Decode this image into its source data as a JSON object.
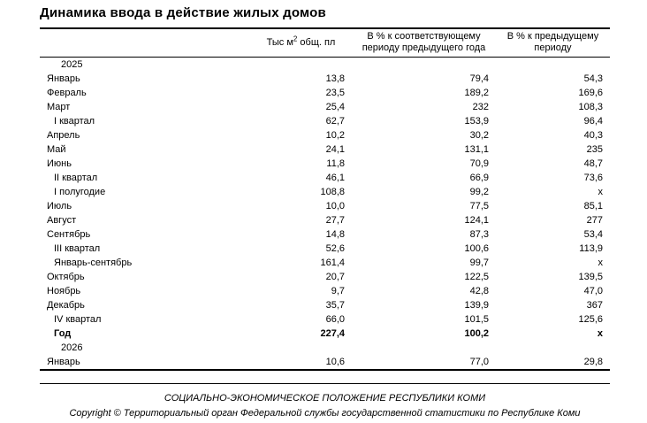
{
  "page": {
    "title": "Динамика ввода в действие жилых домов"
  },
  "table": {
    "headers": {
      "col1": {
        "prefix": "Тыс м",
        "sup": "2",
        "suffix": " общ. пл"
      },
      "col2": {
        "line1": "В % к соответствующему",
        "line2": "периоду предыдущего года"
      },
      "col3": {
        "line1": "В % к предыдущему",
        "line2": "периоду"
      }
    },
    "rows": [
      {
        "label": "2025",
        "type": "year",
        "v1": "",
        "v2": "",
        "v3": ""
      },
      {
        "label": "Январь",
        "type": "month",
        "v1": "13,8",
        "v2": "79,4",
        "v3": "54,3"
      },
      {
        "label": "Февраль",
        "type": "month",
        "v1": "23,5",
        "v2": "189,2",
        "v3": "169,6"
      },
      {
        "label": "Март",
        "type": "month",
        "v1": "25,4",
        "v2": "232",
        "v3": "108,3"
      },
      {
        "label": "I квартал",
        "type": "period",
        "v1": "62,7",
        "v2": "153,9",
        "v3": "96,4"
      },
      {
        "label": "Апрель",
        "type": "month",
        "v1": "10,2",
        "v2": "30,2",
        "v3": "40,3"
      },
      {
        "label": "Май",
        "type": "month",
        "v1": "24,1",
        "v2": "131,1",
        "v3": "235"
      },
      {
        "label": "Июнь",
        "type": "month",
        "v1": "11,8",
        "v2": "70,9",
        "v3": "48,7"
      },
      {
        "label": "II квартал",
        "type": "period",
        "v1": "46,1",
        "v2": "66,9",
        "v3": "73,6"
      },
      {
        "label": "I полугодие",
        "type": "period",
        "v1": "108,8",
        "v2": "99,2",
        "v3": "x"
      },
      {
        "label": "Июль",
        "type": "month",
        "v1": "10,0",
        "v2": "77,5",
        "v3": "85,1"
      },
      {
        "label": "Август",
        "type": "month",
        "v1": "27,7",
        "v2": "124,1",
        "v3": "277"
      },
      {
        "label": "Сентябрь",
        "type": "month",
        "v1": "14,8",
        "v2": "87,3",
        "v3": "53,4"
      },
      {
        "label": "III квартал",
        "type": "period",
        "v1": "52,6",
        "v2": "100,6",
        "v3": "113,9"
      },
      {
        "label": "Январь-сентябрь",
        "type": "period",
        "v1": "161,4",
        "v2": "99,7",
        "v3": "x"
      },
      {
        "label": "Октябрь",
        "type": "month",
        "v1": "20,7",
        "v2": "122,5",
        "v3": "139,5"
      },
      {
        "label": "Ноябрь",
        "type": "month",
        "v1": "9,7",
        "v2": "42,8",
        "v3": "47,0"
      },
      {
        "label": "Декабрь",
        "type": "month",
        "v1": "35,7",
        "v2": "139,9",
        "v3": "367"
      },
      {
        "label": "IV квартал",
        "type": "period",
        "v1": "66,0",
        "v2": "101,5",
        "v3": "125,6"
      },
      {
        "label": "Год",
        "type": "total",
        "v1": "227,4",
        "v2": "100,2",
        "v3": "x"
      },
      {
        "label": "2026",
        "type": "year",
        "v1": "",
        "v2": "",
        "v3": ""
      },
      {
        "label": "Январь",
        "type": "month",
        "v1": "10,6",
        "v2": "77,0",
        "v3": "29,8"
      }
    ]
  },
  "footer": {
    "publication": "СОЦИАЛЬНО-ЭКОНОМИЧЕСКОЕ ПОЛОЖЕНИЕ РЕСПУБЛИКИ КОМИ",
    "copyright": "Copyright © Территориальный орган Федеральной службы государственной статистики по Республике Коми"
  }
}
